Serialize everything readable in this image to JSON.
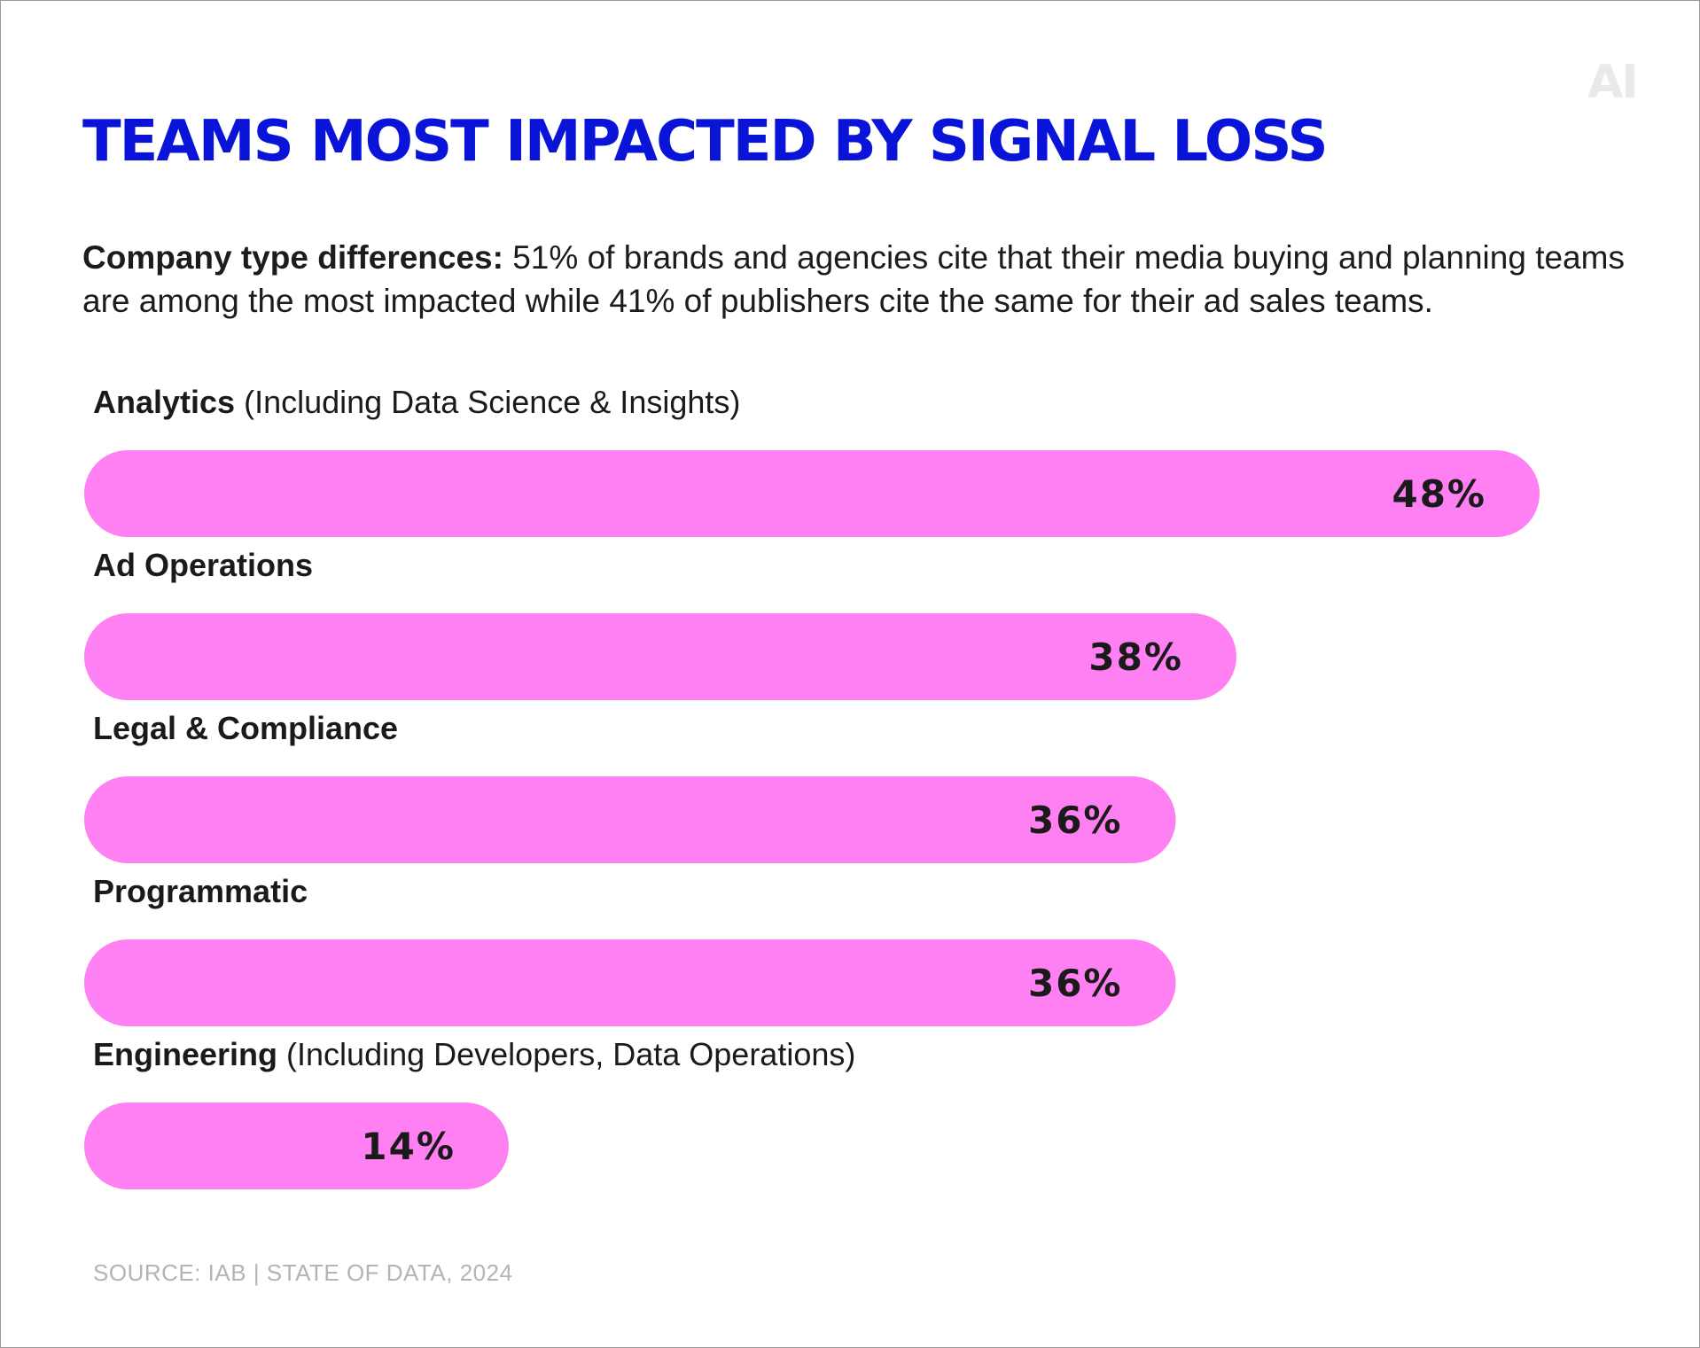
{
  "logo": "AI",
  "title": "TEAMS MOST IMPACTED BY SIGNAL LOSS",
  "subtitle": {
    "lead": "Company type differences:",
    "text": " 51% of brands and agencies cite that their media buying and planning teams are among the most impacted while 41% of publishers cite the same for their ad sales teams."
  },
  "colors": {
    "bar": "#ff80f2",
    "title": "#0a14d8",
    "label": "#1a1a1a",
    "value": "#1a1a1a"
  },
  "chart_data": {
    "type": "bar",
    "orientation": "horizontal",
    "xlim": [
      0,
      48
    ],
    "grid": false,
    "series": [
      {
        "values": [
          48,
          38,
          36,
          36,
          14
        ]
      }
    ],
    "categories": [
      "Analytics (Including Data Science & Insights)",
      "Ad Operations",
      "Legal & Compliance",
      "Programmatic",
      "Engineering (Including Developers, Data Operations)"
    ],
    "bars": [
      {
        "label_bold": "Analytics",
        "label_normal": " (Including Data Science & Insights)",
        "value": 48,
        "value_label": "48%"
      },
      {
        "label_bold": "Ad Operations",
        "label_normal": "",
        "value": 38,
        "value_label": "38%"
      },
      {
        "label_bold": "Legal & Compliance",
        "label_normal": "",
        "value": 36,
        "value_label": "36%"
      },
      {
        "label_bold": "Programmatic",
        "label_normal": "",
        "value": 36,
        "value_label": "36%"
      },
      {
        "label_bold": "Engineering",
        "label_normal": " (Including Developers, Data Operations)",
        "value": 14,
        "value_label": "14%"
      }
    ]
  },
  "source": "SOURCE: IAB | STATE OF DATA, 2024"
}
